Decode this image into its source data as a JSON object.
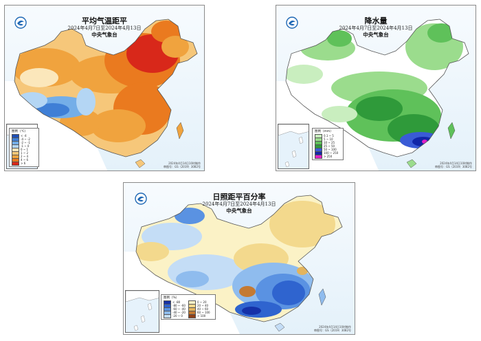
{
  "panels": {
    "temperature": {
      "title": "平均气温距平",
      "date_range": "2024年4月7日至2024年4月13日",
      "org": "中央气象台",
      "legend_title": "图例（℃）",
      "legend": [
        {
          "label": "< -4",
          "color": "#1f4fb5"
        },
        {
          "label": "-4 ~ -2",
          "color": "#3f7fd6"
        },
        {
          "label": "-2 ~ -1",
          "color": "#74aee8"
        },
        {
          "label": "-1 ~ 0",
          "color": "#b4d6f4"
        },
        {
          "label": "0 ~ 1",
          "color": "#fbe7bb"
        },
        {
          "label": "1 ~ 2",
          "color": "#f6c77a"
        },
        {
          "label": "2 ~ 4",
          "color": "#f0a33e"
        },
        {
          "label": "4 ~ 6",
          "color": "#ea7a1f"
        },
        {
          "label": "> 6",
          "color": "#d8281a"
        }
      ],
      "credit_line1": "2024年4月14日10时制作",
      "credit_line2": "审图号：GS（2019）3082号"
    },
    "precipitation": {
      "title": "降水量",
      "date_range": "2024年4月7日至2024年4月13日",
      "org": "中央气象台",
      "legend_title": "图例（mm）",
      "legend": [
        {
          "label": "0.1 ~ 5",
          "color": "#c9eebf"
        },
        {
          "label": "5 ~ 10",
          "color": "#9bdc8d"
        },
        {
          "label": "10 ~ 25",
          "color": "#5fc15a"
        },
        {
          "label": "25 ~ 50",
          "color": "#2f9a3a"
        },
        {
          "label": "50 ~ 100",
          "color": "#3a5bd6"
        },
        {
          "label": "100 ~ 250",
          "color": "#1226a8"
        },
        {
          "label": "> 250",
          "color": "#e020c8"
        }
      ],
      "credit_line1": "2024年4月14日10时制作",
      "credit_line2": "审图号：GS（2019）3082号"
    },
    "sunshine": {
      "title": "日照距平百分率",
      "date_range": "2024年4月7日至2024年4月13日",
      "org": "中央气象台",
      "legend_title": "图例（%）",
      "legend": [
        {
          "label": "< -80",
          "color": "#1531a8"
        },
        {
          "label": "-80 ~ -60",
          "color": "#2f64cf"
        },
        {
          "label": "-60 ~ -40",
          "color": "#5a92e2"
        },
        {
          "label": "-40 ~ -20",
          "color": "#8fbcee"
        },
        {
          "label": "-20 ~ 0",
          "color": "#c4ddf6"
        },
        {
          "label": "0 ~ 20",
          "color": "#fbf2c6"
        },
        {
          "label": "20 ~ 40",
          "color": "#f3d98d"
        },
        {
          "label": "40 ~ 60",
          "color": "#e3b45d"
        },
        {
          "label": "60 ~ 100",
          "color": "#c47a33"
        },
        {
          "label": "> 100",
          "color": "#8f3f17"
        }
      ],
      "credit_line1": "2024年4月14日10时制作",
      "credit_line2": "审图号：GS（2019）3082号"
    }
  },
  "colors": {
    "sea": "#e4f1fa",
    "border_gray": "#8a8a8a",
    "outside_land": "#ffffff"
  },
  "icons": {
    "logo": "meteorological-logo-icon"
  }
}
